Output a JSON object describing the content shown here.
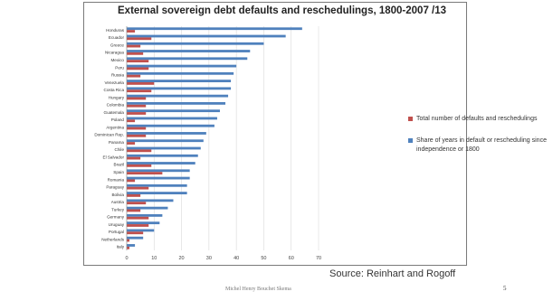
{
  "slide": {
    "source": "Source: Reinhart and Rogoff",
    "author_footer": "Michel Henry Bouchet Skema",
    "page_number": "5"
  },
  "chart_data": {
    "type": "bar",
    "orientation": "horizontal",
    "title": "External sovereign debt defaults and reschedulings, 1800-2007 /13",
    "categories": [
      "Honduras",
      "Ecuador",
      "Greece",
      "Nicaragua",
      "Mexico",
      "Peru",
      "Russia",
      "Venezuela",
      "Costa Rica",
      "Hungary",
      "Colombia",
      "Guatemala",
      "Poland",
      "Argentina",
      "Dominican Rep.",
      "Panama",
      "Chile",
      "El Salvador",
      "Brazil",
      "Spain",
      "Romania",
      "Paraguay",
      "Bolivia",
      "Austria",
      "Turkey",
      "Germany",
      "Uruguay",
      "Portugal",
      "Netherlands",
      "Italy"
    ],
    "series": [
      {
        "name": "Total number of defaults and reschedulings",
        "color": "#c0504d",
        "values": [
          3,
          9,
          5,
          6,
          8,
          8,
          5,
          10,
          9,
          7,
          7,
          7,
          3,
          7,
          7,
          3,
          9,
          5,
          9,
          13,
          3,
          8,
          5,
          7,
          5,
          8,
          8,
          6,
          1,
          1
        ]
      },
      {
        "name": "Share of years in default or rescheduling since independence or 1800",
        "color": "#4f81bd",
        "values": [
          64,
          58,
          50,
          45,
          44,
          40,
          39,
          38,
          38,
          37,
          36,
          34,
          33,
          32,
          29,
          28,
          27,
          26,
          25,
          23,
          23,
          22,
          22,
          17,
          15,
          13,
          12,
          10,
          6,
          3
        ]
      }
    ],
    "xlim": [
      0,
      70
    ],
    "xticks": [
      0,
      10,
      20,
      30,
      40,
      50,
      60,
      70
    ],
    "legend": "right"
  }
}
